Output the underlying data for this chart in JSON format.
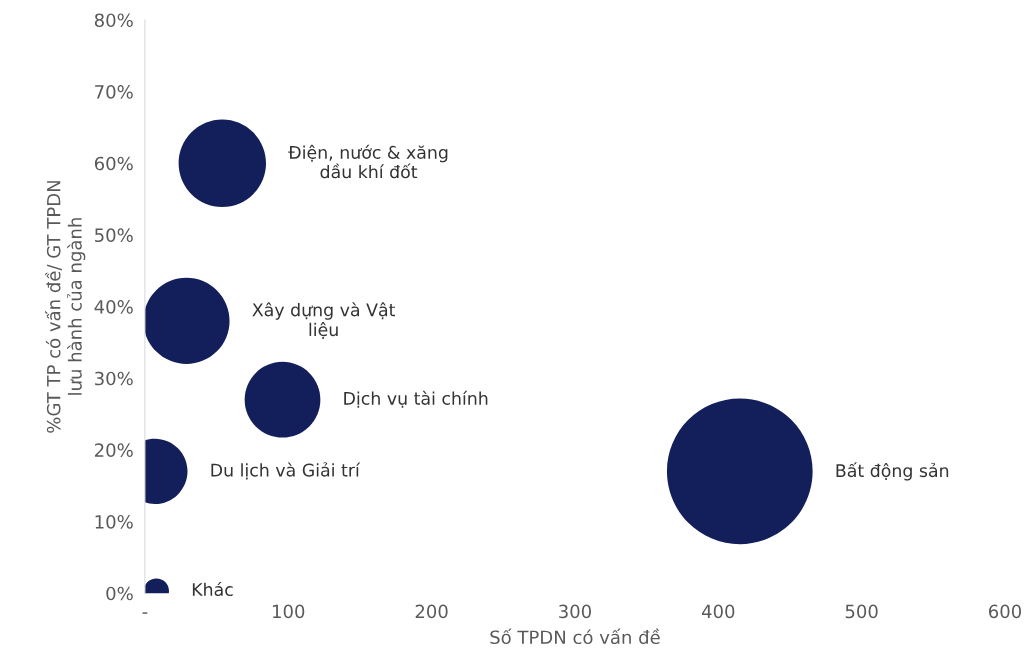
{
  "chart_data": {
    "type": "bubble",
    "xlabel": "Số TPDN có vấn đề",
    "ylabel": "%GT TP có vấn đề/ GT TPDN\nlưu hành của ngành",
    "series": [
      {
        "name": "Điện, nước & xăng\ndầu khí đốt",
        "color": "#131f5a",
        "x": [
          54
        ],
        "values": [
          60
        ],
        "sizes": [
          0.36
        ]
      },
      {
        "name": "Xây dựng và Vật\nliệu",
        "color": "#131f5a",
        "x": [
          29
        ],
        "values": [
          38
        ],
        "sizes": [
          0.35
        ]
      },
      {
        "name": "Dịch vụ tài chính",
        "color": "#131f5a",
        "x": [
          96
        ],
        "values": [
          27
        ],
        "sizes": [
          0.27
        ]
      },
      {
        "name": "Du lịch và Giải trí",
        "color": "#131f5a",
        "x": [
          7
        ],
        "values": [
          17
        ],
        "sizes": [
          0.2
        ]
      },
      {
        "name": "Bất động sản",
        "color": "#131f5a",
        "x": [
          415
        ],
        "values": [
          17
        ],
        "sizes": [
          1
        ]
      },
      {
        "name": "Khác",
        "color": "#131f5a",
        "x": [
          8
        ],
        "values": [
          0.3
        ],
        "sizes": [
          0.03
        ]
      }
    ],
    "xlim": [
      0,
      600
    ],
    "xticks": [
      {
        "value": 0,
        "label": "-"
      },
      100,
      200,
      300,
      400,
      500,
      600
    ],
    "ylim": [
      0,
      80
    ],
    "yticks": [
      {
        "value": 0,
        "label": "0%"
      },
      {
        "value": 10,
        "label": "10%"
      },
      {
        "value": 20,
        "label": "20%"
      },
      {
        "value": 30,
        "label": "30%"
      },
      {
        "value": 40,
        "label": "40%"
      },
      {
        "value": 50,
        "label": "50%"
      },
      {
        "value": 60,
        "label": "60%"
      },
      {
        "value": 70,
        "label": "70%"
      },
      {
        "value": 80,
        "label": "80%"
      }
    ],
    "grid": false,
    "legend": false
  }
}
